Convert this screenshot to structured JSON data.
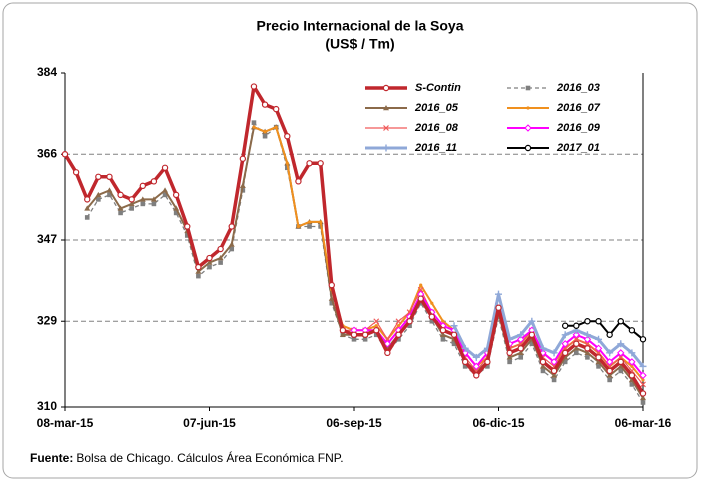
{
  "chart_data": {
    "type": "line",
    "title": "Precio Internacional de la Soya",
    "subtitle": "(US$ / Tm)",
    "source_label": "Fuente:",
    "source": "Bolsa de Chicago. Cálculos Área Económica FNP.",
    "categories": [
      "08-mar-15",
      null,
      null,
      null,
      null,
      null,
      null,
      null,
      null,
      null,
      null,
      null,
      null,
      "07-jun-15",
      null,
      null,
      null,
      null,
      null,
      null,
      null,
      null,
      null,
      null,
      null,
      null,
      "06-sep-15",
      null,
      null,
      null,
      null,
      null,
      null,
      null,
      null,
      null,
      null,
      null,
      null,
      "06-dic-15",
      null,
      null,
      null,
      null,
      null,
      null,
      null,
      null,
      null,
      null,
      null,
      null,
      "06-mar-16"
    ],
    "ylim": [
      310,
      384
    ],
    "yticks": [
      310,
      329,
      347,
      366,
      384
    ],
    "grid": true,
    "legend": "upper right",
    "series": [
      {
        "name": "S-Contin",
        "color": "#c0272d",
        "width": 3.5,
        "marker": "circle",
        "values": [
          366,
          362,
          356,
          361,
          361,
          357,
          356,
          359,
          360,
          363,
          357,
          350,
          341,
          343,
          345,
          350,
          365,
          381,
          377,
          376,
          370,
          360,
          364,
          364,
          337,
          327,
          326,
          326,
          327,
          322,
          326,
          329,
          334,
          330,
          327,
          326,
          320,
          317,
          320,
          332,
          322,
          323,
          326,
          320,
          318,
          322,
          324,
          323,
          321,
          318,
          320,
          317,
          313
        ]
      },
      {
        "name": "2016_03",
        "color": "#7f7f7f",
        "width": 1.3,
        "dash": true,
        "marker": "square",
        "values": [
          null,
          null,
          352,
          356,
          357,
          353,
          354,
          355,
          355,
          357,
          353,
          348,
          339,
          341,
          342,
          345,
          358,
          373,
          370,
          372,
          363,
          350,
          350,
          350,
          333,
          326,
          325,
          325,
          326,
          322,
          325,
          328,
          333,
          329,
          325,
          324,
          319,
          317,
          319,
          330,
          320,
          321,
          324,
          318,
          316,
          320,
          322,
          321,
          319,
          316,
          318,
          315,
          311
        ]
      },
      {
        "name": "2016_05",
        "color": "#8b6a4a",
        "width": 2,
        "marker": "triangle",
        "values": [
          null,
          null,
          354,
          357,
          358,
          354,
          355,
          356,
          356,
          358,
          354,
          349,
          340,
          342,
          343,
          346,
          359,
          372,
          371,
          372,
          364,
          350,
          351,
          351,
          334,
          326,
          326,
          326,
          327,
          323,
          326,
          329,
          334,
          330,
          326,
          325,
          320,
          318,
          320,
          331,
          321,
          322,
          325,
          319,
          317,
          321,
          323,
          322,
          320,
          317,
          319,
          316,
          312
        ]
      },
      {
        "name": "2016_07",
        "color": "#f0901e",
        "width": 2,
        "marker": "dot",
        "values": [
          null,
          null,
          null,
          null,
          null,
          null,
          null,
          null,
          null,
          null,
          null,
          null,
          null,
          null,
          null,
          null,
          null,
          372,
          371,
          372,
          364,
          350,
          351,
          351,
          336,
          328,
          327,
          327,
          328,
          325,
          328,
          331,
          337,
          333,
          329,
          327,
          322,
          319,
          321,
          333,
          323,
          324,
          327,
          322,
          320,
          323,
          325,
          324,
          322,
          319,
          321,
          319,
          316
        ]
      },
      {
        "name": "2016_08",
        "color": "#f05a5a",
        "width": 1.2,
        "marker": "x",
        "values": [
          null,
          null,
          null,
          null,
          null,
          null,
          null,
          null,
          null,
          null,
          null,
          null,
          null,
          null,
          null,
          null,
          null,
          null,
          null,
          null,
          null,
          null,
          null,
          null,
          null,
          327,
          327,
          327,
          329,
          325,
          329,
          331,
          336,
          331,
          328,
          327,
          321,
          318,
          321,
          333,
          323,
          324,
          327,
          321,
          319,
          323,
          325,
          324,
          322,
          319,
          321,
          318,
          315
        ]
      },
      {
        "name": "2016_09",
        "color": "#ff00ff",
        "width": 2,
        "marker": "diamond",
        "values": [
          null,
          null,
          null,
          null,
          null,
          null,
          null,
          null,
          null,
          null,
          null,
          null,
          null,
          null,
          null,
          null,
          null,
          null,
          null,
          null,
          null,
          null,
          null,
          null,
          null,
          null,
          327,
          327,
          327,
          324,
          327,
          330,
          335,
          331,
          328,
          327,
          322,
          319,
          322,
          333,
          324,
          325,
          327,
          322,
          320,
          324,
          326,
          325,
          323,
          320,
          322,
          320,
          317
        ]
      },
      {
        "name": "2016_11",
        "color": "#8fa8d8",
        "width": 3,
        "marker": "plus",
        "values": [
          null,
          null,
          null,
          null,
          null,
          null,
          null,
          null,
          null,
          null,
          null,
          null,
          null,
          null,
          null,
          null,
          null,
          null,
          null,
          null,
          null,
          null,
          null,
          null,
          null,
          null,
          null,
          null,
          null,
          null,
          null,
          null,
          null,
          null,
          null,
          328,
          323,
          321,
          323,
          335,
          325,
          326,
          329,
          323,
          322,
          326,
          327,
          326,
          325,
          322,
          324,
          322,
          319
        ]
      },
      {
        "name": "2017_01",
        "color": "#000000",
        "width": 2,
        "marker": "circle",
        "values": [
          null,
          null,
          null,
          null,
          null,
          null,
          null,
          null,
          null,
          null,
          null,
          null,
          null,
          null,
          null,
          null,
          null,
          null,
          null,
          null,
          null,
          null,
          null,
          null,
          null,
          null,
          null,
          null,
          null,
          null,
          null,
          null,
          null,
          null,
          null,
          null,
          null,
          null,
          null,
          null,
          null,
          null,
          null,
          null,
          null,
          328,
          328,
          329,
          329,
          326,
          329,
          327,
          325
        ]
      }
    ]
  }
}
